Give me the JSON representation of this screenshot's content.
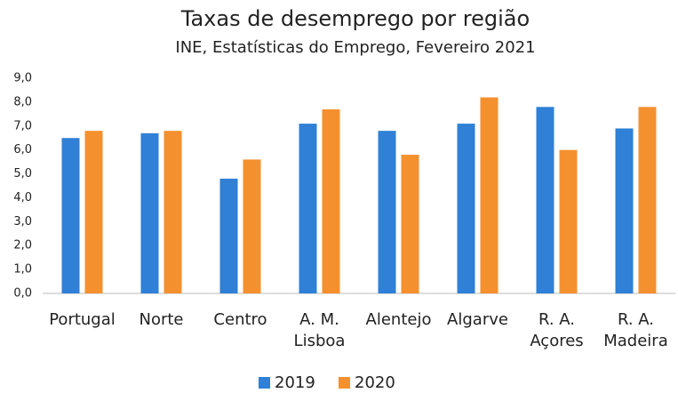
{
  "chart_data": {
    "type": "bar",
    "title": "Taxas de desemprego por região",
    "subtitle": "INE, Estatísticas do Emprego, Fevereiro 2021",
    "categories": [
      "Portugal",
      "Norte",
      "Centro",
      "A. M. Lisboa",
      "Alentejo",
      "Algarve",
      "R. A. Açores",
      "R. A. Madeira"
    ],
    "series": [
      {
        "name": "2019",
        "color": "#2f80d6",
        "values": [
          6.5,
          6.7,
          4.8,
          7.1,
          6.8,
          7.1,
          7.8,
          6.9
        ]
      },
      {
        "name": "2020",
        "color": "#f5902f",
        "values": [
          6.8,
          6.8,
          5.6,
          7.7,
          5.8,
          8.2,
          6.0,
          7.8
        ]
      }
    ],
    "ylim": [
      0,
      9
    ],
    "yticks": [
      {
        "value": 0,
        "label": "0,0"
      },
      {
        "value": 1,
        "label": "1,0"
      },
      {
        "value": 2,
        "label": "2,0"
      },
      {
        "value": 3,
        "label": "3,0"
      },
      {
        "value": 4,
        "label": "4,0"
      },
      {
        "value": 5,
        "label": "5,0"
      },
      {
        "value": 6,
        "label": "6,0"
      },
      {
        "value": 7,
        "label": "7,0"
      },
      {
        "value": 8,
        "label": "8,0"
      },
      {
        "value": 9,
        "label": "9,0"
      }
    ],
    "grid": false,
    "legend": "bottom"
  }
}
